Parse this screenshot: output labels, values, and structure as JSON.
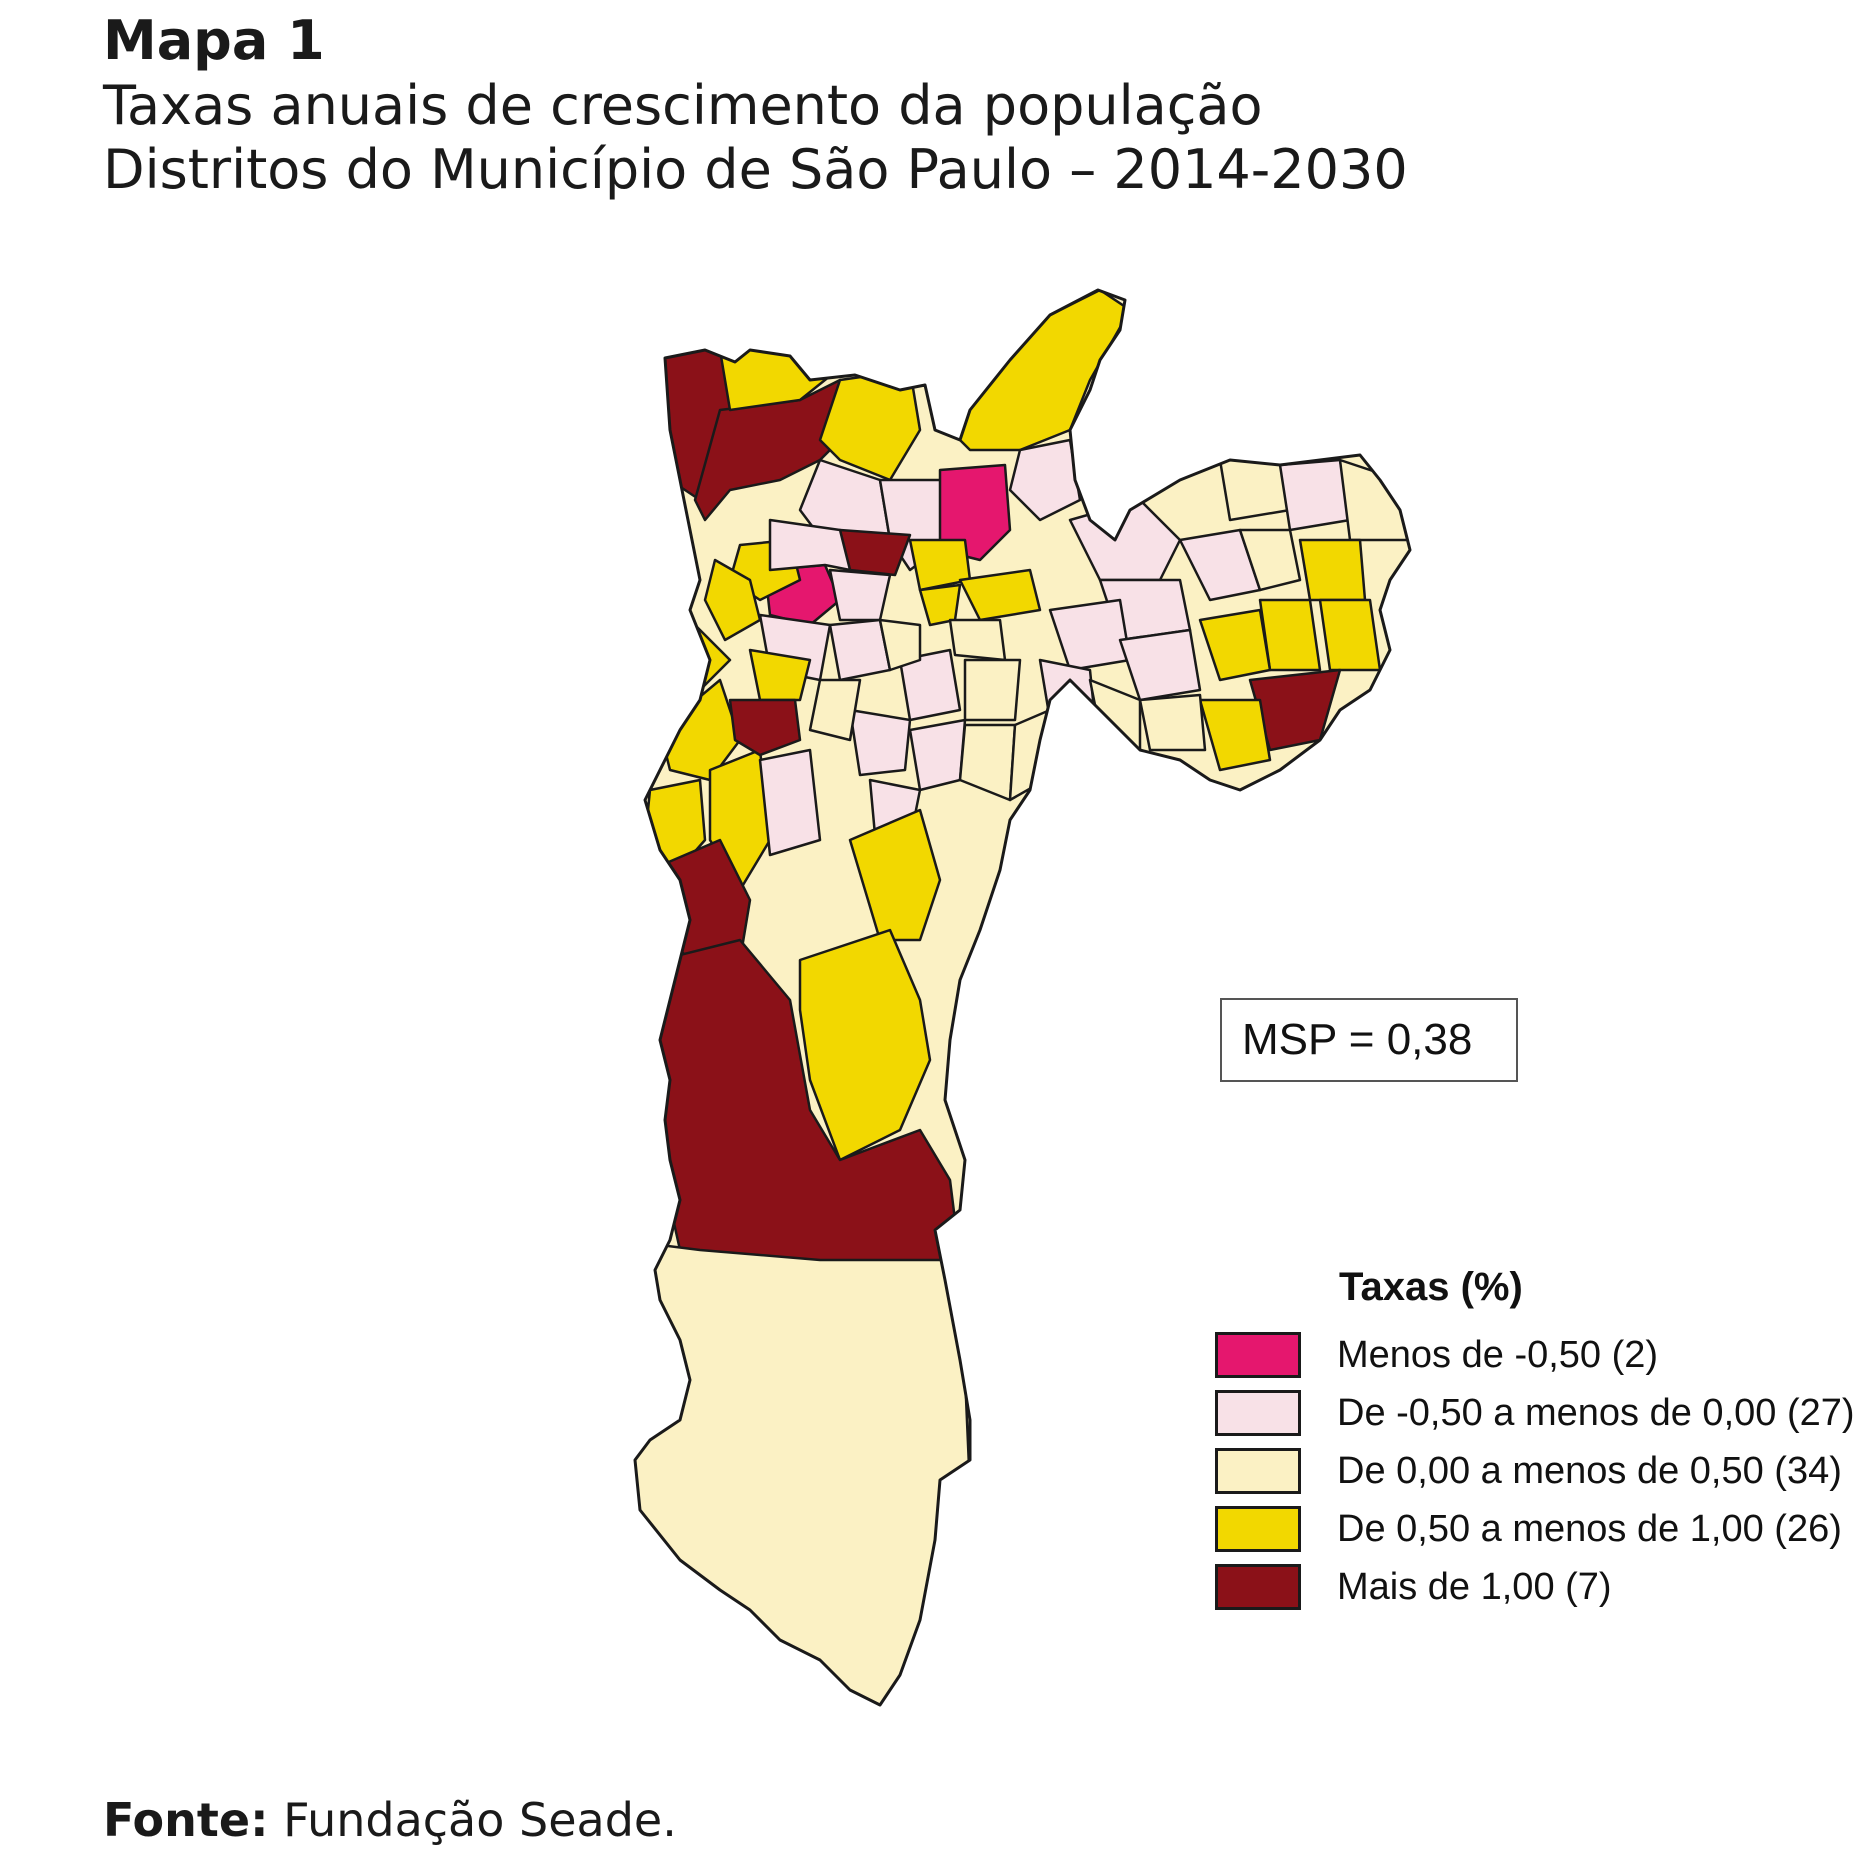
{
  "heading": {
    "map_label": "Mapa 1",
    "subtitle_line1": "Taxas anuais de crescimento da população",
    "subtitle_line2": "Distritos do Município de São Paulo – 2014-2030"
  },
  "msp_box": "MSP = 0,38",
  "legend": {
    "title": "Taxas (%)",
    "items": [
      {
        "label": "Menos de -0,50 (2)",
        "color": "#e5176e"
      },
      {
        "label": "De -0,50 a menos de 0,00 (27)",
        "color": "#f8e1e7"
      },
      {
        "label": "De 0,00 a menos de 0,50 (34)",
        "color": "#fbf1c4"
      },
      {
        "label": "De 0,50 a menos de 1,00 (26)",
        "color": "#f2d800"
      },
      {
        "label": "Mais de 1,00 (7)",
        "color": "#8b1118"
      }
    ]
  },
  "source": {
    "label": "Fonte:",
    "text": "Fundação Seade."
  }
}
